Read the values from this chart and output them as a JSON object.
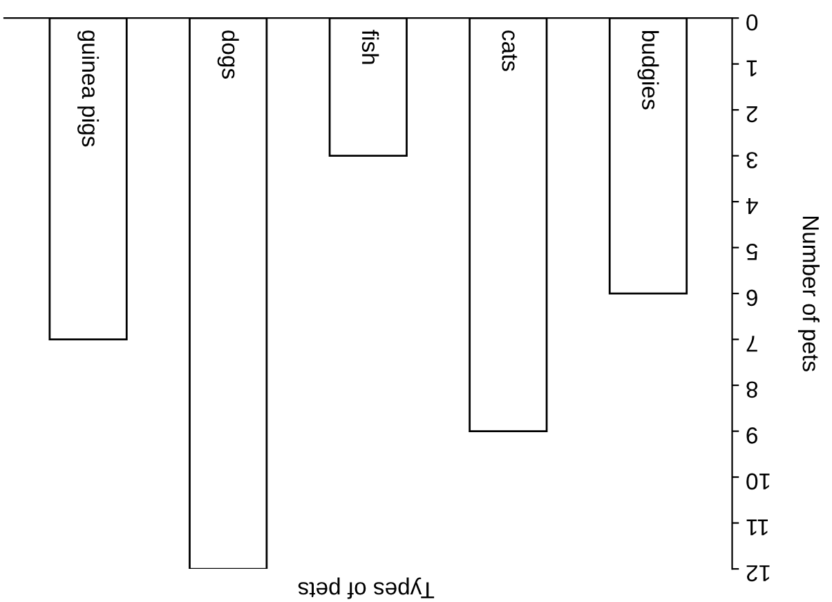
{
  "chart_data": {
    "type": "bar",
    "categories": [
      "guinea pigs",
      "dogs",
      "fish",
      "cats",
      "budgies"
    ],
    "values": [
      7,
      12,
      3,
      9,
      6
    ],
    "color": "#ffffff",
    "xlabel": "Types of pets",
    "ylabel": "Number of pets",
    "ylim": [
      12,
      0
    ],
    "yticks": [
      0,
      1,
      2,
      3,
      4,
      5,
      6,
      7,
      8,
      9,
      10,
      11,
      12
    ],
    "grid": false
  }
}
